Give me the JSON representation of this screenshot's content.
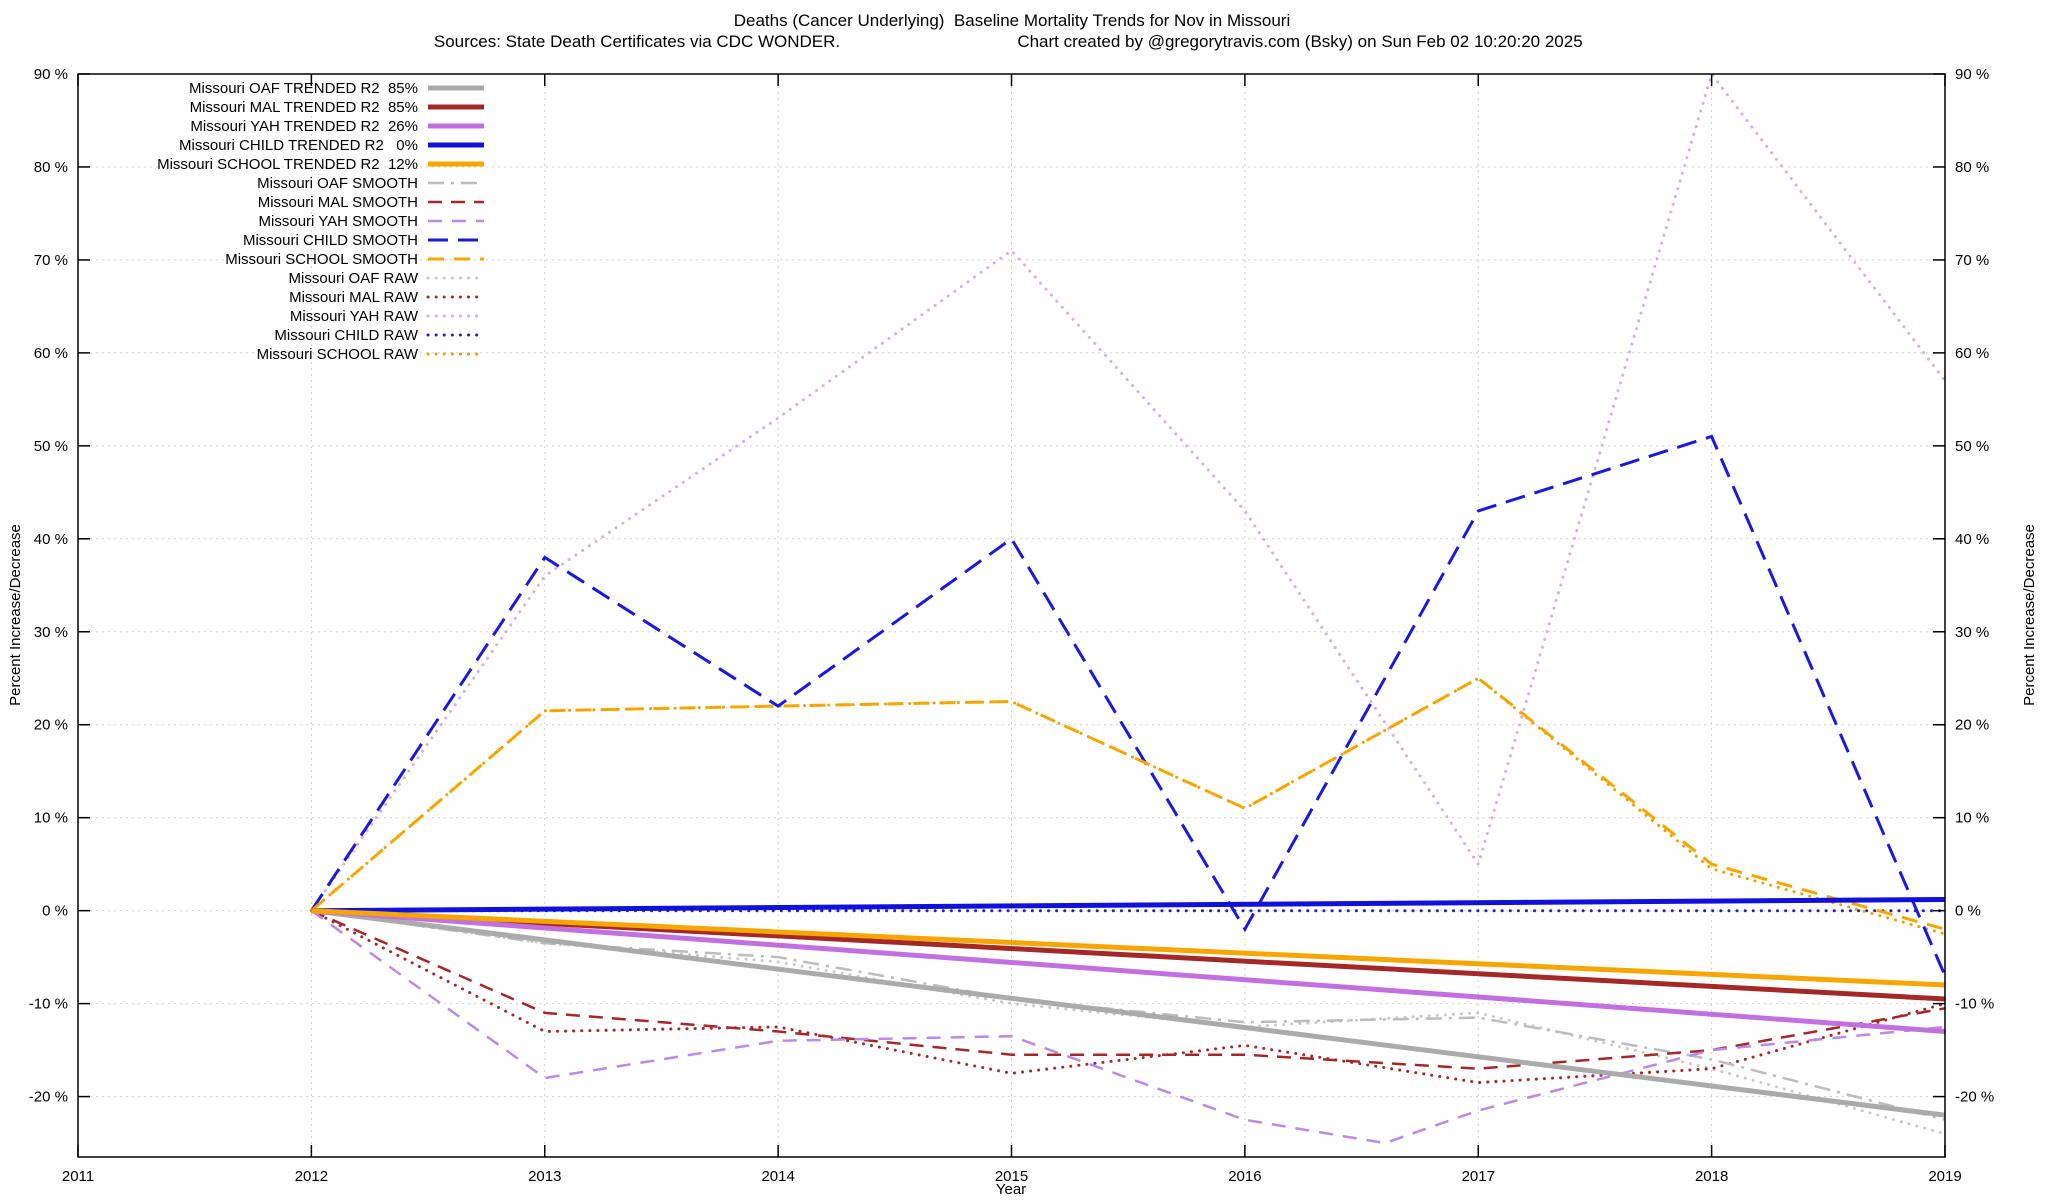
{
  "title": {
    "line1": "Deaths (Cancer Underlying)  Baseline Mortality Trends for Nov in Missouri",
    "sources": "Sources: State Death Certificates via CDC WONDER.",
    "credit": "Chart created by @gregorytravis.com (Bsky) on Sun Feb 02 10:20:20 2025"
  },
  "chart_data": {
    "type": "line",
    "xlabel": "Year",
    "ylabel": "Percent Increase/Decrease",
    "xlim": [
      2011,
      2019
    ],
    "ylim": [
      -26.5,
      90
    ],
    "xticks": [
      2011,
      2012,
      2013,
      2014,
      2015,
      2016,
      2017,
      2018,
      2019
    ],
    "yticks": [
      -20,
      -10,
      0,
      10,
      20,
      30,
      40,
      50,
      60,
      70,
      80,
      90
    ],
    "ytick_suffix": " %",
    "grid": true,
    "legend_position": "top-left",
    "series": [
      {
        "id": "oaf-trended",
        "name": "Missouri OAF TRENDED",
        "label": "Missouri OAF TRENDED R2  85%",
        "r2": "85%",
        "color": "#ababab",
        "width": 5,
        "dash": "",
        "x": [
          2012,
          2019
        ],
        "y": [
          0,
          -22
        ]
      },
      {
        "id": "mal-trended",
        "name": "Missouri MAL TRENDED",
        "label": "Missouri MAL TRENDED R2  85%",
        "r2": "85%",
        "color": "#a52828",
        "width": 5,
        "dash": "",
        "x": [
          2012,
          2019
        ],
        "y": [
          0,
          -9.5
        ]
      },
      {
        "id": "yah-trended",
        "name": "Missouri YAH TRENDED",
        "label": "Missouri YAH TRENDED R2  26%",
        "r2": "26%",
        "color": "#c26fe0",
        "width": 5,
        "dash": "",
        "x": [
          2012,
          2019
        ],
        "y": [
          0,
          -13
        ]
      },
      {
        "id": "child-trended",
        "name": "Missouri CHILD TRENDED",
        "label": "Missouri CHILD TRENDED R2   0%",
        "r2": "0%",
        "color": "#1111dd",
        "width": 5,
        "dash": "",
        "x": [
          2012,
          2019
        ],
        "y": [
          0,
          1.2
        ]
      },
      {
        "id": "school-trended",
        "name": "Missouri SCHOOL TRENDED",
        "label": "Missouri SCHOOL TRENDED R2  12%",
        "r2": "12%",
        "color": "#f7a600",
        "width": 5,
        "dash": "",
        "x": [
          2012,
          2019
        ],
        "y": [
          0,
          -8
        ]
      },
      {
        "id": "oaf-smooth",
        "name": "Missouri OAF SMOOTH",
        "label": "Missouri OAF SMOOTH",
        "color": "#bcbcbc",
        "width": 2.5,
        "dash": "16 7 3 7",
        "x": [
          2012,
          2013,
          2014,
          2015,
          2016,
          2017,
          2018,
          2019
        ],
        "y": [
          0,
          -3.5,
          -5,
          -9.5,
          -12,
          -11.5,
          -16,
          -22.5
        ]
      },
      {
        "id": "mal-smooth",
        "name": "Missouri MAL SMOOTH",
        "label": "Missouri MAL SMOOTH",
        "color": "#a52828",
        "width": 2.5,
        "dash": "14 9",
        "x": [
          2012,
          2013,
          2014,
          2015,
          2016,
          2017,
          2018,
          2019
        ],
        "y": [
          0,
          -11,
          -13,
          -15.5,
          -15.5,
          -17,
          -15,
          -10.5
        ]
      },
      {
        "id": "yah-smooth",
        "name": "Missouri YAH SMOOTH",
        "label": "Missouri YAH SMOOTH",
        "color": "#bb8ae6",
        "width": 2.5,
        "dash": "14 10",
        "x": [
          2012,
          2013,
          2014,
          2015,
          2016,
          2016.6,
          2017,
          2018,
          2019
        ],
        "y": [
          0,
          -18,
          -14,
          -13.5,
          -22.5,
          -25,
          -21.5,
          -15,
          -12.5
        ]
      },
      {
        "id": "child-smooth",
        "name": "Missouri CHILD SMOOTH",
        "label": "Missouri CHILD SMOOTH",
        "color": "#1a1add",
        "width": 3,
        "dash": "20 10",
        "x": [
          2012,
          2013,
          2014,
          2015,
          2016,
          2017,
          2018,
          2019
        ],
        "y": [
          0,
          38,
          22,
          40,
          -2,
          43,
          51,
          -7
        ]
      },
      {
        "id": "school-smooth",
        "name": "Missouri SCHOOL SMOOTH",
        "label": "Missouri SCHOOL SMOOTH",
        "color": "#f7a600",
        "width": 3,
        "dash": "16 10",
        "x": [
          2012,
          2013,
          2014,
          2015,
          2016,
          2017,
          2018,
          2019
        ],
        "y": [
          0,
          21.5,
          22,
          22.5,
          11,
          25,
          5,
          -2
        ]
      },
      {
        "id": "oaf-raw",
        "name": "Missouri OAF RAW",
        "label": "Missouri OAF RAW",
        "color": "#c9c9c9",
        "width": 3,
        "dash": "0.1 8",
        "x": [
          2012,
          2013,
          2014,
          2015,
          2016,
          2017,
          2018,
          2019
        ],
        "y": [
          0,
          -3.5,
          -5.5,
          -10,
          -12.5,
          -11,
          -17,
          -24
        ]
      },
      {
        "id": "mal-raw",
        "name": "Missouri MAL RAW",
        "label": "Missouri MAL RAW",
        "color": "#a52828",
        "width": 3,
        "dash": "0.1 8",
        "x": [
          2012,
          2013,
          2014,
          2015,
          2016,
          2017,
          2018,
          2019
        ],
        "y": [
          0,
          -13,
          -12.5,
          -17.5,
          -14.5,
          -18.5,
          -17,
          -10
        ]
      },
      {
        "id": "yah-raw",
        "name": "Missouri YAH RAW",
        "label": "Missouri YAH RAW",
        "color": "#d5aef2",
        "width": 3,
        "dash": "0.1 8",
        "x": [
          2012,
          2013,
          2014,
          2015,
          2016,
          2017,
          2018,
          2019
        ],
        "y": [
          0,
          36,
          53,
          71,
          43,
          5,
          90,
          57
        ]
      },
      {
        "id": "child-raw",
        "name": "Missouri CHILD RAW",
        "label": "Missouri CHILD RAW",
        "color": "#2222bb",
        "width": 3,
        "dash": "0.1 8",
        "x": [
          2012,
          2013,
          2014,
          2015,
          2016,
          2017,
          2018,
          2019
        ],
        "y": [
          0,
          0,
          0,
          0,
          0,
          0,
          0,
          0
        ]
      },
      {
        "id": "school-raw",
        "name": "Missouri SCHOOL RAW",
        "label": "Missouri SCHOOL RAW",
        "color": "#eda000",
        "width": 3,
        "dash": "0.1 8",
        "x": [
          2012,
          2013,
          2014,
          2015,
          2016,
          2017,
          2018,
          2019
        ],
        "y": [
          0,
          21.5,
          22,
          22.5,
          11,
          25,
          4.5,
          -2.5
        ]
      }
    ]
  }
}
